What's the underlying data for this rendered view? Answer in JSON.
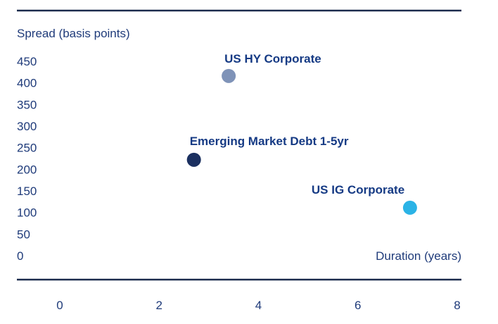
{
  "chart_data": {
    "type": "scatter",
    "ylabel": "Spread (basis points)",
    "xlabel": "Duration (years)",
    "xlim": [
      0,
      8
    ],
    "ylim": [
      0,
      450
    ],
    "x_ticks": [
      0,
      2,
      4,
      6,
      8
    ],
    "y_ticks": [
      0,
      50,
      100,
      150,
      200,
      250,
      300,
      350,
      400,
      450
    ],
    "grid": false,
    "points": [
      {
        "label": "US HY Corporate",
        "x": 3.4,
        "y": 416,
        "color": "#7f93b8"
      },
      {
        "label": "Emerging Market Debt 1-5yr",
        "x": 2.7,
        "y": 222,
        "color": "#1b3060"
      },
      {
        "label": "US IG Corporate",
        "x": 7.05,
        "y": 111,
        "color": "#2bb3e6"
      }
    ],
    "colors": {
      "text": "#1f3b7a",
      "label": "#153a84",
      "rule": "#1b2b4d"
    }
  }
}
